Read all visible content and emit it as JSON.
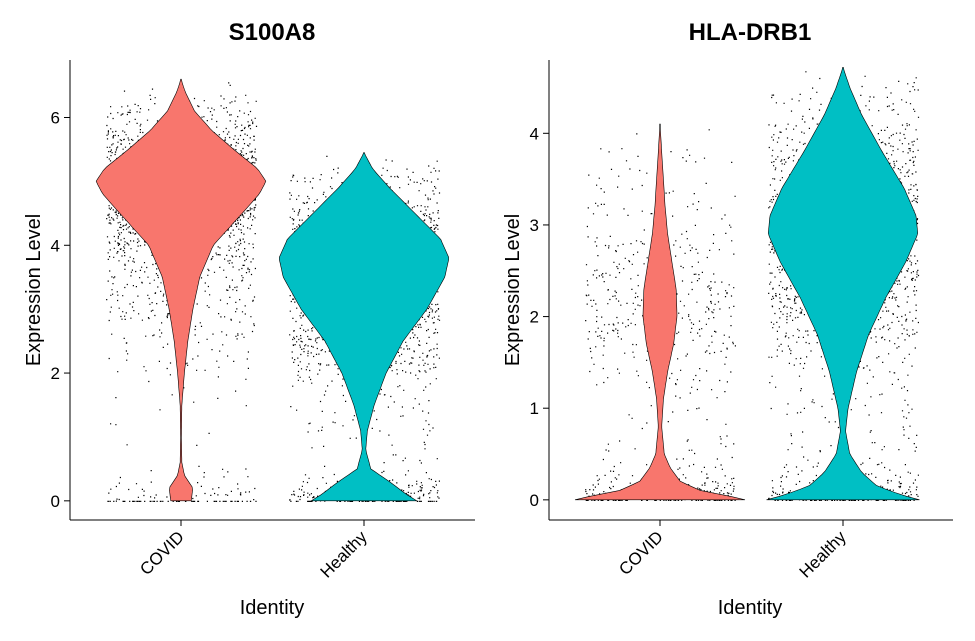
{
  "chart_data": [
    {
      "type": "violin",
      "title": "S100A8",
      "xlabel": "Identity",
      "ylabel": "Expression Level",
      "categories": [
        "COVID",
        "Healthy"
      ],
      "colors": [
        "#F8766D",
        "#00BFC4"
      ],
      "ylim": [
        -0.3,
        6.9
      ],
      "yticks": [
        0,
        2,
        4,
        6
      ],
      "ytick_labels": [
        "0",
        "2",
        "4",
        "6"
      ],
      "jitter_points": true,
      "series": [
        {
          "category": "COVID",
          "max": 6.6,
          "density": [
            [
              0,
              0.12
            ],
            [
              0.2,
              0.14
            ],
            [
              0.4,
              0.04
            ],
            [
              0.6,
              0.01
            ],
            [
              1.0,
              0.005
            ],
            [
              1.5,
              0.01
            ],
            [
              2.0,
              0.04
            ],
            [
              2.5,
              0.08
            ],
            [
              3.0,
              0.14
            ],
            [
              3.5,
              0.22
            ],
            [
              4.0,
              0.38
            ],
            [
              4.5,
              0.72
            ],
            [
              4.8,
              0.92
            ],
            [
              5.0,
              1.0
            ],
            [
              5.2,
              0.9
            ],
            [
              5.5,
              0.62
            ],
            [
              5.8,
              0.36
            ],
            [
              6.1,
              0.16
            ],
            [
              6.4,
              0.05
            ],
            [
              6.6,
              0.0
            ]
          ]
        },
        {
          "category": "Healthy",
          "max": 5.45,
          "density": [
            [
              0,
              0.62
            ],
            [
              0.1,
              0.5
            ],
            [
              0.3,
              0.3
            ],
            [
              0.5,
              0.08
            ],
            [
              0.8,
              0.02
            ],
            [
              1.1,
              0.04
            ],
            [
              1.5,
              0.12
            ],
            [
              2.0,
              0.26
            ],
            [
              2.5,
              0.46
            ],
            [
              3.0,
              0.74
            ],
            [
              3.5,
              0.95
            ],
            [
              3.8,
              1.0
            ],
            [
              4.1,
              0.9
            ],
            [
              4.5,
              0.6
            ],
            [
              4.9,
              0.3
            ],
            [
              5.2,
              0.1
            ],
            [
              5.45,
              0.0
            ]
          ]
        }
      ]
    },
    {
      "type": "violin",
      "title": "HLA-DRB1",
      "xlabel": "Identity",
      "ylabel": "Expression Level",
      "categories": [
        "COVID",
        "Healthy"
      ],
      "colors": [
        "#F8766D",
        "#00BFC4"
      ],
      "ylim": [
        -0.22,
        4.8
      ],
      "yticks": [
        0,
        1,
        2,
        3,
        4
      ],
      "ytick_labels": [
        "0",
        "1",
        "2",
        "3",
        "4"
      ],
      "jitter_points": true,
      "series": [
        {
          "category": "COVID",
          "max": 4.1,
          "density": [
            [
              0,
              1.0
            ],
            [
              0.04,
              0.82
            ],
            [
              0.1,
              0.48
            ],
            [
              0.2,
              0.24
            ],
            [
              0.35,
              0.12
            ],
            [
              0.5,
              0.05
            ],
            [
              0.8,
              0.02
            ],
            [
              1.1,
              0.04
            ],
            [
              1.4,
              0.09
            ],
            [
              1.7,
              0.16
            ],
            [
              2.0,
              0.2
            ],
            [
              2.3,
              0.19
            ],
            [
              2.6,
              0.14
            ],
            [
              2.9,
              0.09
            ],
            [
              3.2,
              0.06
            ],
            [
              3.5,
              0.04
            ],
            [
              3.8,
              0.02
            ],
            [
              4.1,
              0.0
            ]
          ]
        },
        {
          "category": "Healthy",
          "max": 4.72,
          "density": [
            [
              0,
              0.9
            ],
            [
              0.05,
              0.7
            ],
            [
              0.15,
              0.4
            ],
            [
              0.3,
              0.22
            ],
            [
              0.5,
              0.08
            ],
            [
              0.75,
              0.03
            ],
            [
              1.0,
              0.06
            ],
            [
              1.4,
              0.16
            ],
            [
              1.8,
              0.3
            ],
            [
              2.2,
              0.5
            ],
            [
              2.6,
              0.74
            ],
            [
              2.9,
              0.88
            ],
            [
              3.1,
              0.86
            ],
            [
              3.4,
              0.72
            ],
            [
              3.8,
              0.46
            ],
            [
              4.2,
              0.22
            ],
            [
              4.5,
              0.08
            ],
            [
              4.72,
              0.0
            ]
          ]
        }
      ]
    }
  ]
}
